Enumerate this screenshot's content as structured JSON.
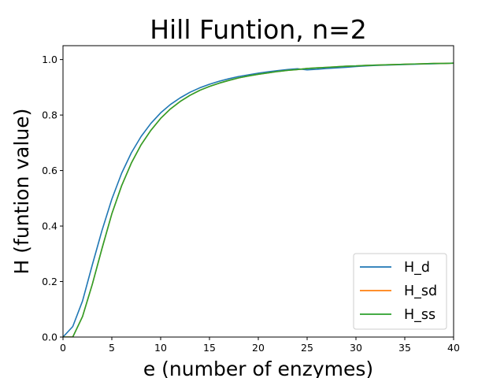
{
  "chart_data": {
    "type": "line",
    "title": "Hill Funtion, n=2",
    "xlabel": "e (number of enzymes)",
    "ylabel": "H (funtion value)",
    "xlim": [
      0,
      40
    ],
    "ylim": [
      0,
      1.05
    ],
    "xticks": [
      0,
      5,
      10,
      15,
      20,
      25,
      30,
      35,
      40
    ],
    "yticks": [
      0.0,
      0.2,
      0.4,
      0.6,
      0.8,
      1.0
    ],
    "xtick_labels": [
      "0",
      "5",
      "10",
      "15",
      "20",
      "25",
      "30",
      "35",
      "40"
    ],
    "ytick_labels": [
      "0.0",
      "0.2",
      "0.4",
      "0.6",
      "0.8",
      "1.0"
    ],
    "grid": false,
    "legend_position": "bottom-right",
    "series": [
      {
        "name": "H_d",
        "color": "#1f77b4",
        "x": [
          0,
          1,
          2,
          3,
          4,
          5,
          6,
          7,
          8,
          9,
          10,
          11,
          12,
          13,
          14,
          15,
          16,
          17,
          18,
          19,
          20,
          21,
          22,
          23,
          24,
          25,
          26,
          27,
          28,
          29,
          30,
          31,
          32,
          33,
          34,
          35,
          36,
          37,
          38,
          39,
          40
        ],
        "y": [
          0.0,
          0.038,
          0.13,
          0.26,
          0.385,
          0.497,
          0.59,
          0.664,
          0.723,
          0.77,
          0.808,
          0.838,
          0.862,
          0.882,
          0.898,
          0.911,
          0.922,
          0.931,
          0.939,
          0.945,
          0.951,
          0.956,
          0.96,
          0.964,
          0.967,
          0.963,
          0.965,
          0.968,
          0.97,
          0.972,
          0.975,
          0.977,
          0.979,
          0.98,
          0.981,
          0.982,
          0.983,
          0.984,
          0.985,
          0.986,
          0.987
        ]
      },
      {
        "name": "H_sd",
        "color": "#ff7f0e",
        "x": [
          0,
          1,
          2,
          3,
          4,
          5,
          6,
          7,
          8,
          9,
          10,
          11,
          12,
          13,
          14,
          15,
          16,
          17,
          18,
          19,
          20,
          21,
          22,
          23,
          24,
          25,
          26,
          27,
          28,
          29,
          30,
          31,
          32,
          33,
          34,
          35,
          36,
          37,
          38,
          39,
          40
        ],
        "y": [
          0.0,
          0.0,
          0.074,
          0.19,
          0.32,
          0.444,
          0.545,
          0.627,
          0.693,
          0.745,
          0.788,
          0.822,
          0.849,
          0.871,
          0.889,
          0.903,
          0.915,
          0.925,
          0.934,
          0.941,
          0.947,
          0.952,
          0.957,
          0.961,
          0.964,
          0.968,
          0.97,
          0.972,
          0.974,
          0.976,
          0.977,
          0.979,
          0.98,
          0.981,
          0.982,
          0.983,
          0.984,
          0.985,
          0.986,
          0.986,
          0.987
        ]
      },
      {
        "name": "H_ss",
        "color": "#2ca02c",
        "x": [
          0,
          1,
          2,
          3,
          4,
          5,
          6,
          7,
          8,
          9,
          10,
          11,
          12,
          13,
          14,
          15,
          16,
          17,
          18,
          19,
          20,
          21,
          22,
          23,
          24,
          25,
          26,
          27,
          28,
          29,
          30,
          31,
          32,
          33,
          34,
          35,
          36,
          37,
          38,
          39,
          40
        ],
        "y": [
          0.0,
          0.0,
          0.074,
          0.19,
          0.32,
          0.444,
          0.545,
          0.627,
          0.693,
          0.745,
          0.788,
          0.822,
          0.849,
          0.871,
          0.889,
          0.903,
          0.915,
          0.925,
          0.934,
          0.941,
          0.947,
          0.952,
          0.957,
          0.961,
          0.964,
          0.968,
          0.97,
          0.972,
          0.974,
          0.976,
          0.977,
          0.979,
          0.98,
          0.981,
          0.982,
          0.983,
          0.984,
          0.985,
          0.986,
          0.986,
          0.987
        ]
      }
    ]
  }
}
